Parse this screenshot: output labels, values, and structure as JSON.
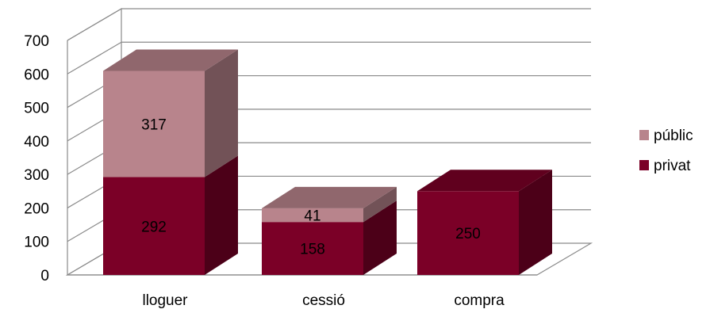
{
  "chart_data": {
    "type": "bar",
    "stacked": true,
    "three_d": true,
    "categories": [
      "lloguer",
      "cessió",
      "compra"
    ],
    "series": [
      {
        "name": "privat",
        "values": [
          292,
          158,
          250
        ],
        "color": "#7B0027"
      },
      {
        "name": "públic",
        "values": [
          317,
          41,
          0
        ],
        "color": "#B8848C"
      }
    ],
    "data_labels": [
      [
        "292",
        "158",
        "250"
      ],
      [
        "317",
        "41",
        ""
      ]
    ],
    "yticks": [
      "0",
      "100",
      "200",
      "300",
      "400",
      "500",
      "600",
      "700"
    ],
    "ylim": [
      0,
      700
    ],
    "grid": true,
    "legend_position": "right",
    "legend_order": [
      "públic",
      "privat"
    ]
  }
}
